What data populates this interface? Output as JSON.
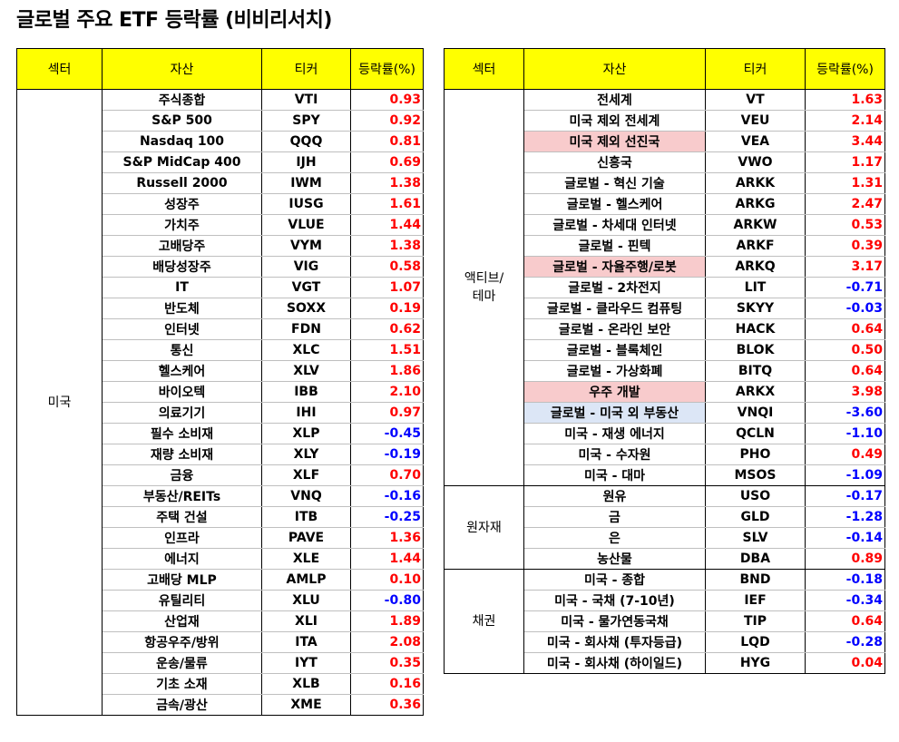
{
  "title": "글로벌 주요 ETF 등락률 (비비리서치)",
  "headers": {
    "sector": "섹터",
    "asset": "자산",
    "ticker": "티커",
    "change": "등락률(%)"
  },
  "colors": {
    "header_bg": "#ffff00",
    "positive": "#ff0000",
    "negative": "#0000ff",
    "highlight_red": "#f8cbcc",
    "highlight_blue": "#dce6f6"
  },
  "left_groups": [
    {
      "sector": "미국",
      "rows": [
        {
          "asset": "주식종합",
          "ticker": "VTI",
          "change": "0.93"
        },
        {
          "asset": "S&P 500",
          "ticker": "SPY",
          "change": "0.92"
        },
        {
          "asset": "Nasdaq 100",
          "ticker": "QQQ",
          "change": "0.81"
        },
        {
          "asset": "S&P MidCap 400",
          "ticker": "IJH",
          "change": "0.69"
        },
        {
          "asset": "Russell 2000",
          "ticker": "IWM",
          "change": "1.38"
        },
        {
          "asset": "성장주",
          "ticker": "IUSG",
          "change": "1.61"
        },
        {
          "asset": "가치주",
          "ticker": "VLUE",
          "change": "1.44"
        },
        {
          "asset": "고배당주",
          "ticker": "VYM",
          "change": "1.38"
        },
        {
          "asset": "배당성장주",
          "ticker": "VIG",
          "change": "0.58"
        },
        {
          "asset": "IT",
          "ticker": "VGT",
          "change": "1.07"
        },
        {
          "asset": "반도체",
          "ticker": "SOXX",
          "change": "0.19"
        },
        {
          "asset": "인터넷",
          "ticker": "FDN",
          "change": "0.62"
        },
        {
          "asset": "통신",
          "ticker": "XLC",
          "change": "1.51"
        },
        {
          "asset": "헬스케어",
          "ticker": "XLV",
          "change": "1.86"
        },
        {
          "asset": "바이오텍",
          "ticker": "IBB",
          "change": "2.10"
        },
        {
          "asset": "의료기기",
          "ticker": "IHI",
          "change": "0.97"
        },
        {
          "asset": "필수 소비재",
          "ticker": "XLP",
          "change": "-0.45"
        },
        {
          "asset": "재량 소비재",
          "ticker": "XLY",
          "change": "-0.19"
        },
        {
          "asset": "금융",
          "ticker": "XLF",
          "change": "0.70"
        },
        {
          "asset": "부동산/REITs",
          "ticker": "VNQ",
          "change": "-0.16"
        },
        {
          "asset": "주택 건설",
          "ticker": "ITB",
          "change": "-0.25"
        },
        {
          "asset": "인프라",
          "ticker": "PAVE",
          "change": "1.36"
        },
        {
          "asset": "에너지",
          "ticker": "XLE",
          "change": "1.44"
        },
        {
          "asset": "고배당 MLP",
          "ticker": "AMLP",
          "change": "0.10"
        },
        {
          "asset": "유틸리티",
          "ticker": "XLU",
          "change": "-0.80"
        },
        {
          "asset": "산업재",
          "ticker": "XLI",
          "change": "1.89"
        },
        {
          "asset": "항공우주/방위",
          "ticker": "ITA",
          "change": "2.08"
        },
        {
          "asset": "운송/물류",
          "ticker": "IYT",
          "change": "0.35"
        },
        {
          "asset": "기초 소재",
          "ticker": "XLB",
          "change": "0.16"
        },
        {
          "asset": "금속/광산",
          "ticker": "XME",
          "change": "0.36"
        }
      ]
    }
  ],
  "right_groups": [
    {
      "sector": "액티브/테마",
      "rows": [
        {
          "asset": "전세계",
          "ticker": "VT",
          "change": "1.63"
        },
        {
          "asset": "미국 제외 전세계",
          "ticker": "VEU",
          "change": "2.14"
        },
        {
          "asset": "미국 제외 선진국",
          "ticker": "VEA",
          "change": "3.44",
          "highlight": "red"
        },
        {
          "asset": "신흥국",
          "ticker": "VWO",
          "change": "1.17"
        },
        {
          "asset": "글로벌 - 혁신 기술",
          "ticker": "ARKK",
          "change": "1.31"
        },
        {
          "asset": "글로벌 - 헬스케어",
          "ticker": "ARKG",
          "change": "2.47"
        },
        {
          "asset": "글로벌 - 차세대 인터넷",
          "ticker": "ARKW",
          "change": "0.53"
        },
        {
          "asset": "글로벌 - 핀텍",
          "ticker": "ARKF",
          "change": "0.39"
        },
        {
          "asset": "글로벌 - 자율주행/로봇",
          "ticker": "ARKQ",
          "change": "3.17",
          "highlight": "red"
        },
        {
          "asset": "글로벌 - 2차전지",
          "ticker": "LIT",
          "change": "-0.71"
        },
        {
          "asset": "글로벌 - 클라우드 컴퓨팅",
          "ticker": "SKYY",
          "change": "-0.03"
        },
        {
          "asset": "글로벌 - 온라인 보안",
          "ticker": "HACK",
          "change": "0.64"
        },
        {
          "asset": "글로벌 - 블록체인",
          "ticker": "BLOK",
          "change": "0.50"
        },
        {
          "asset": "글로벌 - 가상화폐",
          "ticker": "BITQ",
          "change": "0.64"
        },
        {
          "asset": "우주 개발",
          "ticker": "ARKX",
          "change": "3.98",
          "highlight": "red"
        },
        {
          "asset": "글로벌 - 미국 외 부동산",
          "ticker": "VNQI",
          "change": "-3.60",
          "highlight": "blue"
        },
        {
          "asset": "미국 - 재생 에너지",
          "ticker": "QCLN",
          "change": "-1.10"
        },
        {
          "asset": "미국 - 수자원",
          "ticker": "PHO",
          "change": "0.49"
        },
        {
          "asset": "미국 - 대마",
          "ticker": "MSOS",
          "change": "-1.09"
        }
      ]
    },
    {
      "sector": "원자재",
      "rows": [
        {
          "asset": "원유",
          "ticker": "USO",
          "change": "-0.17"
        },
        {
          "asset": "금",
          "ticker": "GLD",
          "change": "-1.28"
        },
        {
          "asset": "은",
          "ticker": "SLV",
          "change": "-0.14"
        },
        {
          "asset": "농산물",
          "ticker": "DBA",
          "change": "0.89"
        }
      ]
    },
    {
      "sector": "채권",
      "rows": [
        {
          "asset": "미국 - 종합",
          "ticker": "BND",
          "change": "-0.18"
        },
        {
          "asset": "미국 - 국채 (7-10년)",
          "ticker": "IEF",
          "change": "-0.34"
        },
        {
          "asset": "미국 - 물가연동국채",
          "ticker": "TIP",
          "change": "0.64"
        },
        {
          "asset": "미국 - 회사채 (투자등급)",
          "ticker": "LQD",
          "change": "-0.28"
        },
        {
          "asset": "미국 - 회사채 (하이일드)",
          "ticker": "HYG",
          "change": "0.04"
        }
      ]
    }
  ]
}
